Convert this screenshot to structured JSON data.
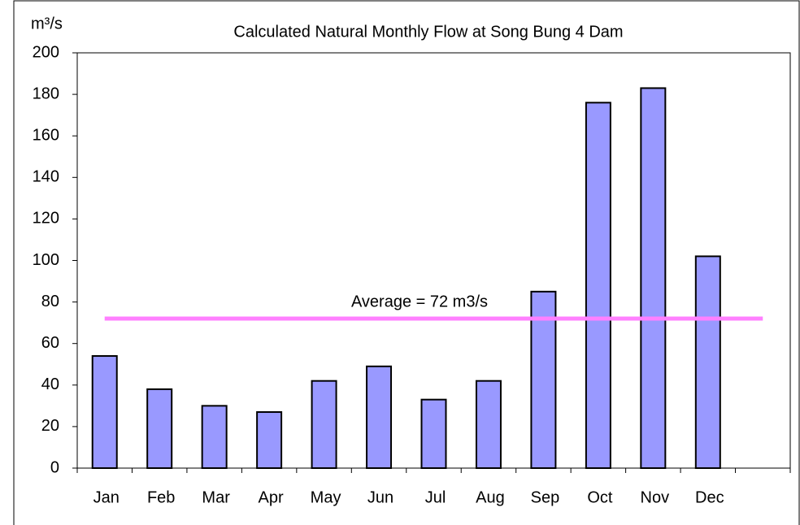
{
  "chart_data": {
    "type": "bar",
    "title": "Calculated Natural Monthly Flow at Song Bung 4 Dam",
    "y_label": "m³/s",
    "categories": [
      "Jan",
      "Feb",
      "Mar",
      "Apr",
      "May",
      "Jun",
      "Jul",
      "Aug",
      "Sep",
      "Oct",
      "Nov",
      "Dec",
      null
    ],
    "values": [
      54,
      38,
      30,
      27,
      42,
      49,
      33,
      42,
      85,
      176,
      183,
      102,
      null
    ],
    "color": "#9999ff",
    "ylim": [
      0,
      200
    ],
    "yticks": [
      0,
      20,
      40,
      60,
      80,
      100,
      120,
      140,
      160,
      180,
      200
    ],
    "grid": false,
    "average": {
      "value": 72,
      "label": "Average = 72 m3/s",
      "color": "#ff80ff"
    }
  }
}
